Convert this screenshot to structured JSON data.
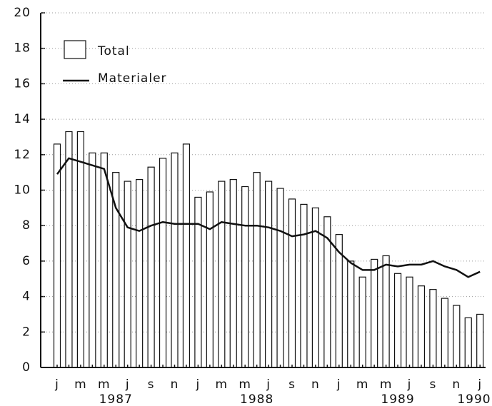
{
  "chart_data": {
    "type": "bar_line",
    "categories": [
      "j",
      null,
      "m",
      null,
      "m",
      null,
      "j",
      null,
      "s",
      null,
      "n",
      null,
      "j",
      null,
      "m",
      null,
      "m",
      null,
      "j",
      null,
      "s",
      null,
      "n",
      null,
      "j",
      null,
      "m",
      null,
      "m",
      null,
      "j",
      null,
      "s",
      null,
      "n",
      null,
      "j"
    ],
    "year_labels": [
      "1987",
      "1988",
      "1989",
      "1990"
    ],
    "series": [
      {
        "name": "Total",
        "color": "#ffffff",
        "values": [
          12.6,
          13.3,
          13.3,
          12.1,
          12.1,
          11.0,
          10.5,
          10.6,
          11.3,
          11.8,
          12.1,
          12.6,
          9.6,
          9.9,
          10.5,
          10.6,
          10.2,
          11.0,
          10.5,
          10.1,
          9.5,
          9.2,
          9.0,
          8.5,
          7.5,
          6.0,
          5.1,
          6.1,
          6.3,
          5.3,
          5.1,
          4.6,
          4.4,
          3.9,
          3.5,
          2.8,
          3.0
        ]
      },
      {
        "name": "Materialer",
        "color": "#111111",
        "values": [
          10.9,
          11.8,
          11.6,
          11.4,
          11.2,
          9.0,
          7.9,
          7.7,
          8.0,
          8.2,
          8.1,
          8.1,
          8.1,
          7.8,
          8.2,
          8.1,
          8.0,
          8.0,
          7.9,
          7.7,
          7.4,
          7.5,
          7.7,
          7.3,
          6.5,
          5.9,
          5.5,
          5.5,
          5.8,
          5.7,
          5.8,
          5.8,
          6.0,
          5.7,
          5.5,
          5.1,
          5.4
        ]
      }
    ],
    "ylim": [
      0,
      20
    ],
    "yticks": [
      0,
      2,
      4,
      6,
      8,
      10,
      12,
      14,
      16,
      18,
      20
    ],
    "grid": true
  }
}
